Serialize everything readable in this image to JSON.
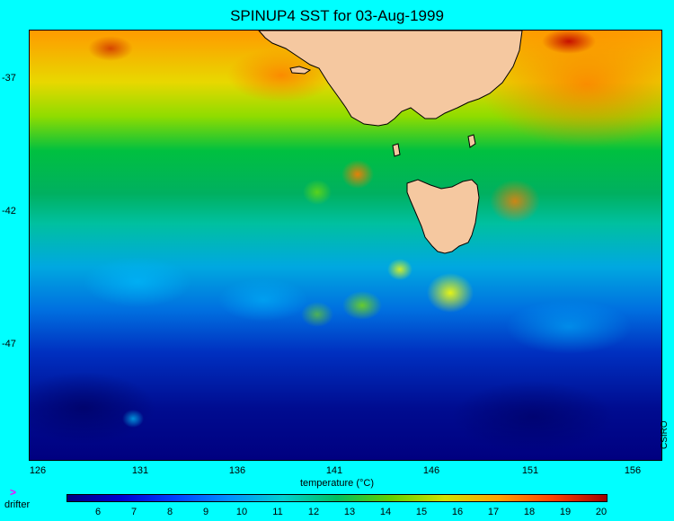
{
  "title": "SPINUP4 SST for 03-Aug-1999",
  "lat_ticks": [
    "-37",
    "-42",
    "-47"
  ],
  "lon_ticks": [
    "126",
    "131",
    "136",
    "141",
    "146",
    "151",
    "156"
  ],
  "colorbar": {
    "title": "temperature (°C)",
    "ticks": [
      "6",
      "7",
      "8",
      "9",
      "10",
      "11",
      "12",
      "13",
      "14",
      "15",
      "16",
      "17",
      "18",
      "19",
      "20"
    ]
  },
  "credit": "CSIRO",
  "legend": {
    "symbol": ">",
    "label": "drifter"
  },
  "colors": {
    "background": "#00ffff",
    "land": "#f5c8a0",
    "sst_cold": "#00008b",
    "sst_warm": "#8b0000"
  }
}
